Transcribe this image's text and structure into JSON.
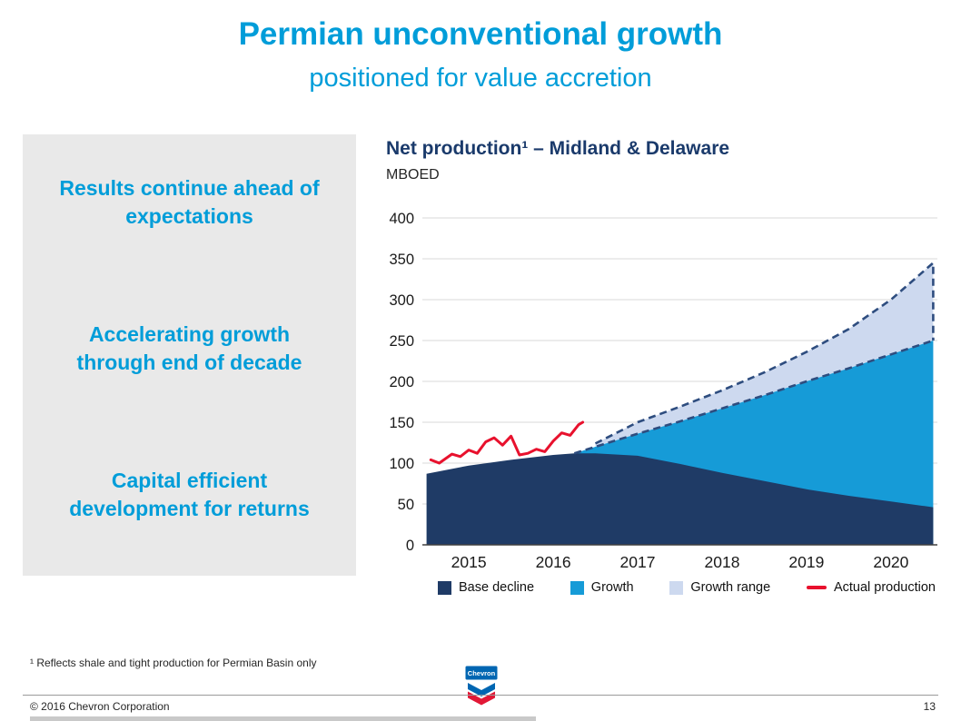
{
  "slide": {
    "title": "Permian unconventional growth",
    "subtitle": "positioned for value accretion",
    "accent_color": "#009dd9"
  },
  "sidebar": {
    "items": [
      {
        "label": "Results continue ahead of\nexpectations"
      },
      {
        "label": "Accelerating growth\nthrough end of decade"
      },
      {
        "label": "Capital efficient\ndevelopment for returns"
      }
    ]
  },
  "chart_data": {
    "type": "area",
    "title": "Net production¹ – Midland & Delaware",
    "ylabel": "MBOED",
    "xlabel": "",
    "xlim": [
      2014.45,
      2020.55
    ],
    "ylim": [
      0,
      400
    ],
    "yticks": [
      0,
      50,
      100,
      150,
      200,
      250,
      300,
      350,
      400
    ],
    "xticks": [
      2015,
      2016,
      2017,
      2018,
      2019,
      2020
    ],
    "grid": "horizontal",
    "legend_position": "bottom",
    "dash_color": "#2e4d7f",
    "series": [
      {
        "name": "Base decline",
        "color": "#1f3b66",
        "x": [
          2014.5,
          2015.0,
          2015.5,
          2016.0,
          2016.25,
          2016.5,
          2017.0,
          2017.5,
          2018.0,
          2018.5,
          2019.0,
          2019.5,
          2020.0,
          2020.5
        ],
        "values": [
          87,
          97,
          104,
          110,
          112,
          112,
          109,
          99,
          88,
          78,
          68,
          60,
          53,
          46
        ]
      },
      {
        "name": "Growth",
        "color": "#169bd7",
        "x": [
          2016.25,
          2016.5,
          2017.0,
          2017.5,
          2018.0,
          2018.5,
          2019.0,
          2019.5,
          2020.0,
          2020.5
        ],
        "values": [
          112,
          120,
          136,
          151,
          167,
          183,
          200,
          216,
          233,
          250
        ]
      },
      {
        "name": "Growth range",
        "color": "#cdd9ef",
        "x": [
          2016.5,
          2017.0,
          2017.5,
          2018.0,
          2018.5,
          2019.0,
          2019.5,
          2020.0,
          2020.5
        ],
        "values": [
          124,
          150,
          169,
          189,
          211,
          236,
          264,
          300,
          345
        ]
      },
      {
        "name": "Actual production",
        "type": "line",
        "color": "#e8112d",
        "x": [
          2014.55,
          2014.65,
          2014.8,
          2014.9,
          2015.0,
          2015.1,
          2015.2,
          2015.3,
          2015.4,
          2015.5,
          2015.6,
          2015.7,
          2015.8,
          2015.9,
          2016.0,
          2016.1,
          2016.2,
          2016.3,
          2016.35
        ],
        "values": [
          104,
          100,
          111,
          108,
          116,
          112,
          126,
          131,
          122,
          133,
          110,
          112,
          117,
          114,
          127,
          137,
          134,
          147,
          150
        ]
      }
    ]
  },
  "footnote": "¹ Reflects shale and tight production for Permian Basin only",
  "footer": {
    "copyright": "© 2016 Chevron Corporation",
    "page_number": "13"
  },
  "logo": {
    "text": "Chevron",
    "blue": "#0066b2",
    "red": "#e21836"
  }
}
